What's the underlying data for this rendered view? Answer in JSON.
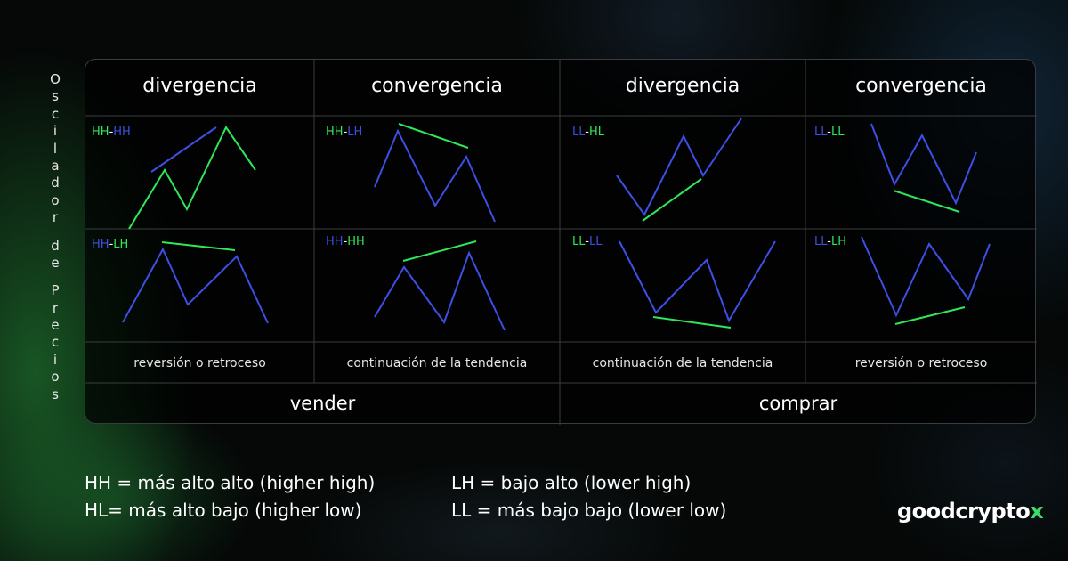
{
  "side_label": "Oscilador de Precios",
  "columns": [
    {
      "header": "divergencia",
      "result": "reversión o retroceso",
      "top": {
        "a": "HH",
        "b": "HH",
        "ca": "#2ee85a",
        "cb": "#3d4fe6"
      },
      "bottom": {
        "a": "HH",
        "b": "LH",
        "ca": "#3d4fe6",
        "cb": "#2ee85a"
      }
    },
    {
      "header": "convergencia",
      "result": "continuación de la tendencia",
      "top": {
        "a": "HH",
        "b": "LH",
        "ca": "#2ee85a",
        "cb": "#3d4fe6"
      },
      "bottom": {
        "a": "HH",
        "b": "HH",
        "ca": "#3d4fe6",
        "cb": "#2ee85a"
      }
    },
    {
      "header": "divergencia",
      "result": "continuación de la tendencia",
      "top": {
        "a": "LL",
        "b": "HL",
        "ca": "#3d4fe6",
        "cb": "#2ee85a"
      },
      "bottom": {
        "a": "LL",
        "b": "LL",
        "ca": "#2ee85a",
        "cb": "#3d4fe6"
      }
    },
    {
      "header": "convergencia",
      "result": "reversión o retroceso",
      "top": {
        "a": "LL",
        "b": "LL",
        "ca": "#3d4fe6",
        "cb": "#2ee85a"
      },
      "bottom": {
        "a": "LL",
        "b": "LH",
        "ca": "#3d4fe6",
        "cb": "#2ee85a"
      }
    }
  ],
  "actions": {
    "left": "vender",
    "right": "comprar"
  },
  "legend": {
    "hh": "HH = más alto alto  (higher high)",
    "hl": "HL= más alto bajo (higher low)",
    "lh": "LH  = bajo alto (lower high)",
    "ll": "LL = más bajo bajo (lower low)"
  },
  "logo": "goodcrypto",
  "logo_accent": "x",
  "colors": {
    "green": "#2ee85a",
    "blue": "#3d4fe6",
    "accent": "#3ddc6a"
  }
}
